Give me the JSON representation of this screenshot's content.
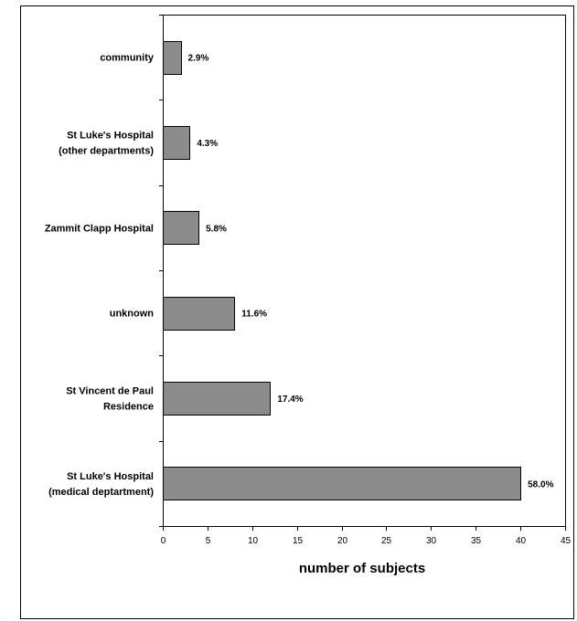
{
  "chart_data": {
    "type": "bar",
    "orientation": "horizontal",
    "title": "",
    "xlabel": "number of subjects",
    "ylabel": "",
    "xlim": [
      0,
      45
    ],
    "x_ticks": [
      "0",
      "5",
      "10",
      "15",
      "20",
      "25",
      "30",
      "35",
      "40",
      "45"
    ],
    "grid": false,
    "legend": "none",
    "categories": [
      [
        "community"
      ],
      [
        "St Luke's Hospital",
        "(other departments)"
      ],
      [
        "Zammit Clapp Hospital"
      ],
      [
        "unknown"
      ],
      [
        "St Vincent de Paul",
        "Residence"
      ],
      [
        "St Luke's Hospital",
        "(medical deptartment)"
      ]
    ],
    "values": [
      2,
      3,
      4,
      8,
      12,
      40
    ],
    "data_labels": [
      "2.9%",
      "4.3%",
      "5.8%",
      "11.6%",
      "17.4%",
      "58.0%"
    ],
    "bar_color": "#8c8c8c",
    "bar_edge_color": "#000000"
  }
}
